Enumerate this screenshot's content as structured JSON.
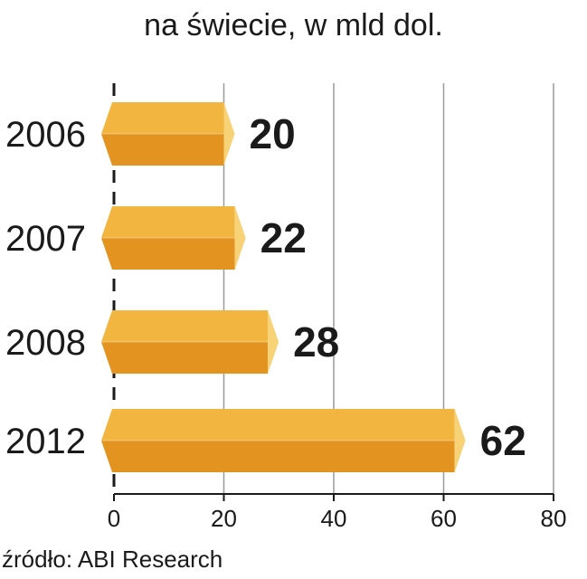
{
  "title": "na świecie, w mld dol.",
  "source": "źródło: ABI Research",
  "colors": {
    "bar_top": "#f2b640",
    "bar_bottom": "#e3931f",
    "bar_tip": "#f7d277",
    "grid": "#9a9a9a",
    "axis": "#1a1a1a"
  },
  "chart_data": {
    "type": "bar",
    "orientation": "horizontal",
    "title": "na świecie, w mld dol.",
    "categories": [
      "2006",
      "2007",
      "2008",
      "2012"
    ],
    "values": [
      20,
      22,
      28,
      62
    ],
    "data_labels": [
      "20",
      "22",
      "28",
      "62"
    ],
    "xlim": [
      0,
      80
    ],
    "xticks": [
      0,
      20,
      40,
      60,
      80
    ],
    "xtick_labels": [
      "0",
      "20",
      "40",
      "60",
      "80"
    ],
    "grid": true,
    "xlabel": "",
    "ylabel": ""
  }
}
